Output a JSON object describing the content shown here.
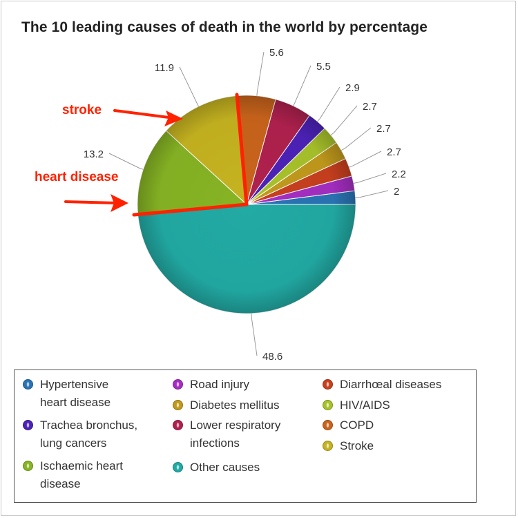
{
  "chart_data": {
    "type": "pie",
    "title": "The 10 leading causes of death in the world by percentage",
    "slices": [
      {
        "name": "Hypertensive heart disease",
        "value": 2.0,
        "label": "2",
        "color": "#2a74b4"
      },
      {
        "name": "Road injury",
        "value": 2.2,
        "label": "2.2",
        "color": "#a52ec2"
      },
      {
        "name": "Diarrhœal diseases",
        "value": 2.7,
        "label": "2.7",
        "color": "#c8401e"
      },
      {
        "name": "Diabetes mellitus",
        "value": 2.7,
        "label": "2.7",
        "color": "#c19a1c"
      },
      {
        "name": "HIV/AIDS",
        "value": 2.7,
        "label": "2.7",
        "color": "#a8c22b"
      },
      {
        "name": "Trachea bronchus, lung cancers",
        "value": 2.9,
        "label": "2.9",
        "color": "#4c22b8"
      },
      {
        "name": "Lower respiratory infections",
        "value": 5.5,
        "label": "5.5",
        "color": "#b0214e"
      },
      {
        "name": "COPD",
        "value": 5.6,
        "label": "5.6",
        "color": "#c9641c"
      },
      {
        "name": "Stroke",
        "value": 11.9,
        "label": "11.9",
        "color": "#c5b320"
      },
      {
        "name": "Ischaemic heart disease",
        "value": 13.2,
        "label": "13.2",
        "color": "#86b424"
      },
      {
        "name": "Other causes",
        "value": 48.6,
        "label": "48.6",
        "color": "#22aaa4"
      }
    ],
    "legend": {
      "placement": "bottom",
      "columns": [
        [
          "Hypertensive\nheart disease",
          "Trachea bronchus,\nlung cancers",
          "Ischaemic heart\ndisease"
        ],
        [
          "Road injury",
          "Diabetes mellitus",
          "Lower respiratory\ninfections",
          "Other causes"
        ],
        [
          "Diarrhœal diseases",
          "HIV/AIDS",
          "COPD",
          "Stroke"
        ]
      ],
      "colors": [
        [
          "#2a74b4",
          "#4c22b8",
          "#86b424"
        ],
        [
          "#a52ec2",
          "#c19a1c",
          "#b0214e",
          "#22aaa4"
        ],
        [
          "#c8401e",
          "#a8c22b",
          "#c9641c",
          "#c5b320"
        ]
      ]
    },
    "annotations": [
      {
        "text": "stroke",
        "color": "#ff2200"
      },
      {
        "text": "heart disease",
        "color": "#ff2200"
      }
    ]
  }
}
